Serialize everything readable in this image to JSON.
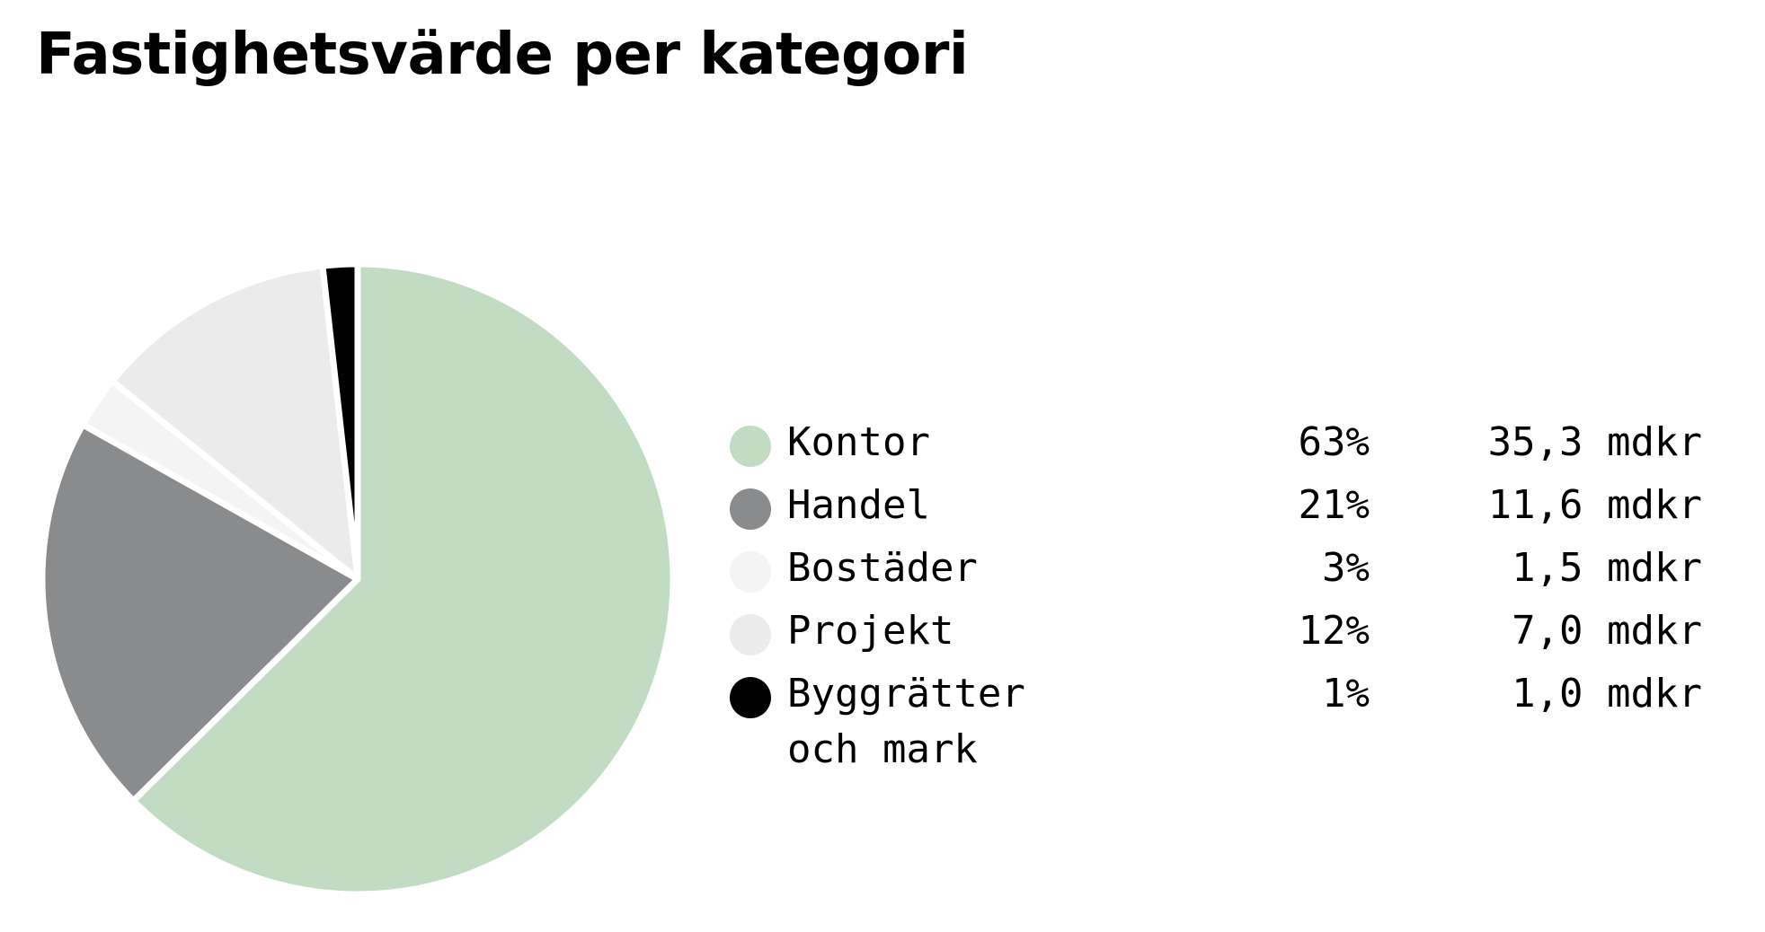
{
  "chart_data": {
    "type": "pie",
    "title": "Fastighetsvärde per kategori",
    "legend_placement": "right",
    "slices": [
      {
        "label": "Kontor",
        "percent": 63,
        "percent_label": "63%",
        "value": 35.3,
        "value_label": "35,3 mdkr",
        "color": "#c2dbc3"
      },
      {
        "label": "Handel",
        "percent": 21,
        "percent_label": "21%",
        "value": 11.6,
        "value_label": "11,6 mdkr",
        "color": "#8a8b8d"
      },
      {
        "label": "Bostäder",
        "percent": 3,
        "percent_label": "3%",
        "value": 1.5,
        "value_label": "1,5 mdkr",
        "color": "#f4f4f4"
      },
      {
        "label": "Projekt",
        "percent": 12,
        "percent_label": "12%",
        "value": 7.0,
        "value_label": "7,0 mdkr",
        "color": "#ebebeb"
      },
      {
        "label": "Byggrätter och mark",
        "percent": 1,
        "percent_label": "1%",
        "value": 1.0,
        "value_label": "1,0 mdkr",
        "color": "#000000"
      }
    ]
  }
}
